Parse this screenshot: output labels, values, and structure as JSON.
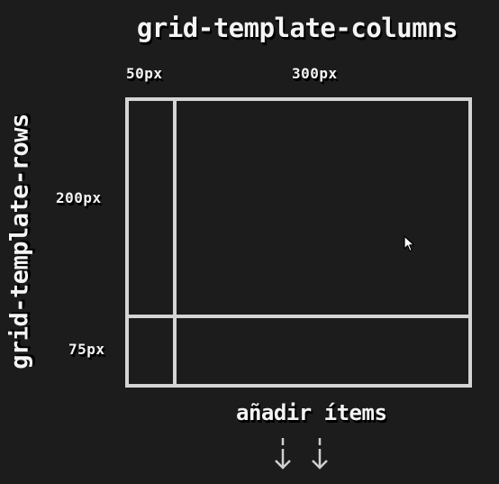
{
  "title_columns": "grid-template-columns",
  "title_rows": "grid-template-rows",
  "columns": [
    "50px",
    "300px"
  ],
  "rows": [
    "200px",
    "75px"
  ],
  "add_items": "añadir ítems",
  "icons": {
    "arrow": "arrow-down-icon",
    "cursor": "mouse-pointer-icon"
  },
  "colors": {
    "background": "#1c1c1c",
    "grid_lines": "#d4d4d4",
    "text": "#f4f4f4"
  }
}
